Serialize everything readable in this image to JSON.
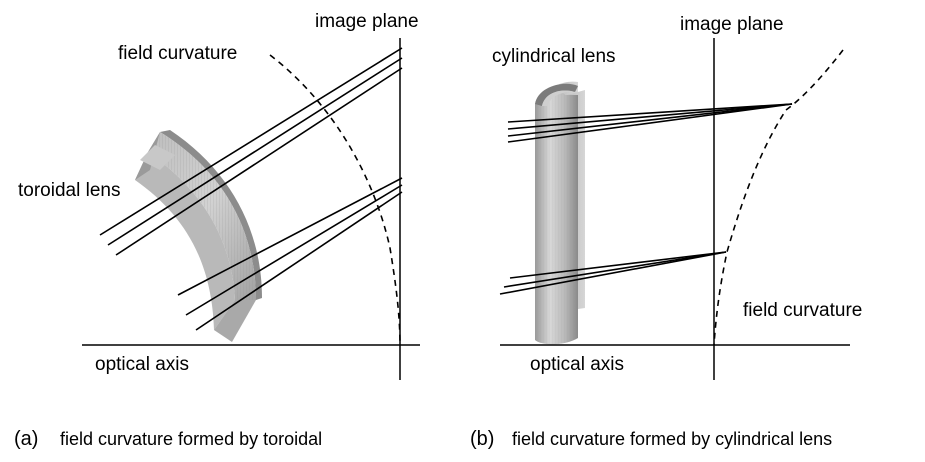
{
  "panel_a": {
    "label_image_plane": "image plane",
    "label_field_curvature": "field curvature",
    "label_lens": "toroidal lens",
    "label_optical_axis": "optical axis",
    "caption_marker": "(a)",
    "caption_text": "field curvature formed by toroidal"
  },
  "panel_b": {
    "label_image_plane": "image plane",
    "label_lens": "cylindrical lens",
    "label_field_curvature": "field curvature",
    "label_optical_axis": "optical axis",
    "caption_marker": "(b)",
    "caption_text": "field curvature formed by cylindrical lens"
  },
  "colors": {
    "ink": "#000000",
    "lens_light": "#d4d4d4",
    "lens_mid": "#a8a8a8",
    "lens_dark": "#7a7a7a"
  },
  "icons": {
    "lens_a": "toroidal-lens-illustration",
    "lens_b": "cylindrical-lens-illustration"
  }
}
